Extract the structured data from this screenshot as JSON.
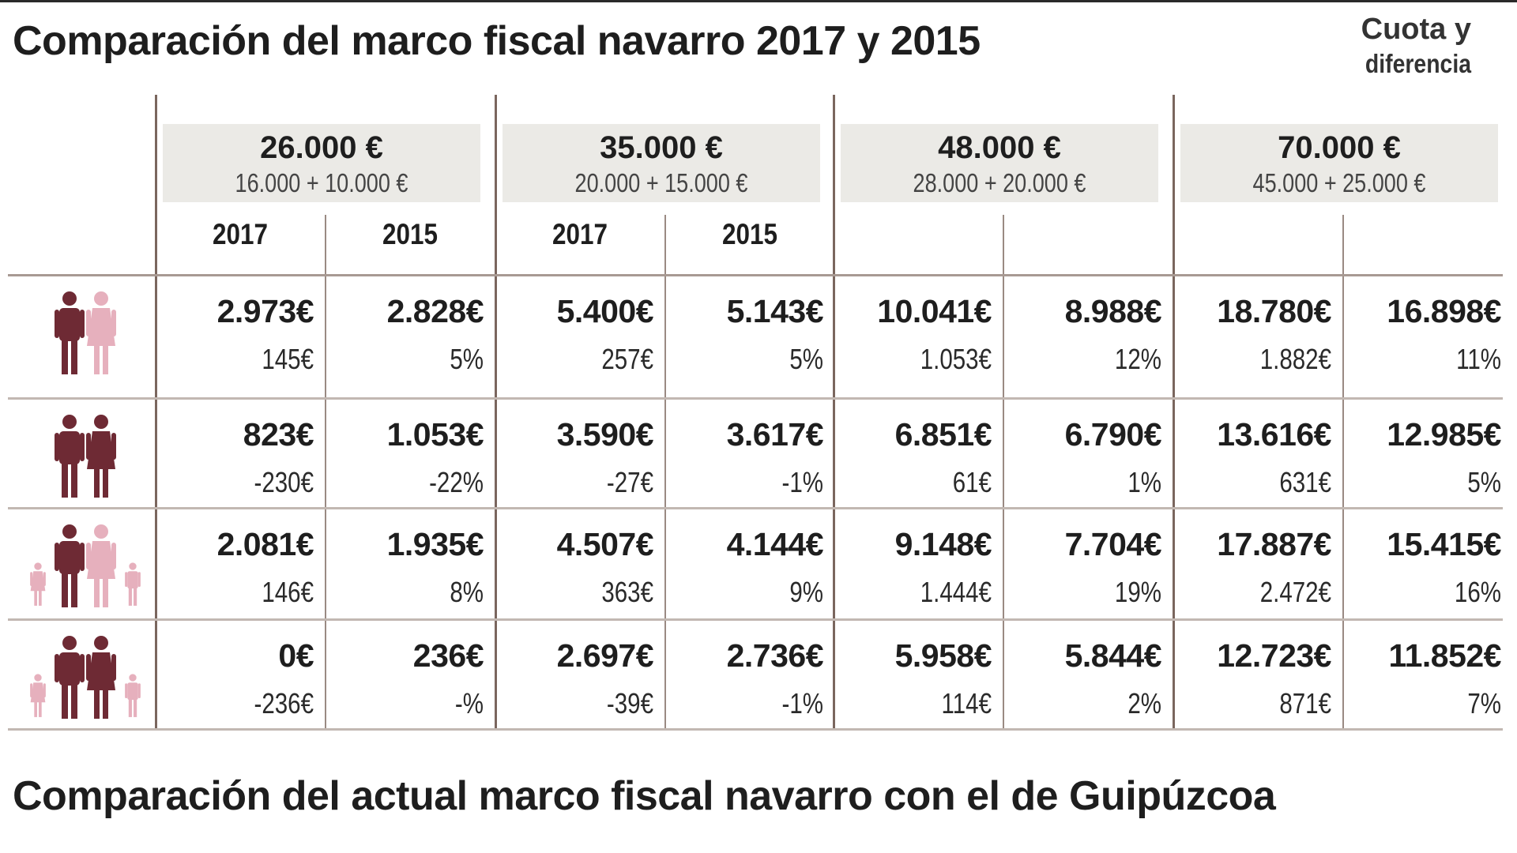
{
  "title": "Comparación del marco fiscal navarro 2017 y 2015",
  "legend": {
    "line1": "Cuota y",
    "line2": "diferencia"
  },
  "groups": [
    {
      "amount": "26.000 €",
      "breakdown": "16.000 + 10.000 €",
      "years": [
        "2017",
        "2015"
      ]
    },
    {
      "amount": "35.000 €",
      "breakdown": "20.000 + 15.000 €",
      "years": [
        "2017",
        "2015"
      ]
    },
    {
      "amount": "48.000 €",
      "breakdown": "28.000 + 20.000 €",
      "years": [
        "",
        ""
      ]
    },
    {
      "amount": "70.000 €",
      "breakdown": "45.000 + 25.000 €",
      "years": [
        "",
        ""
      ]
    }
  ],
  "rows": [
    {
      "icon": "couple-mixed-icon",
      "cells": [
        {
          "amount": "2.973€",
          "diff": "145€"
        },
        {
          "amount": "2.828€",
          "diff": "5%"
        },
        {
          "amount": "5.400€",
          "diff": "257€"
        },
        {
          "amount": "5.143€",
          "diff": "5%"
        },
        {
          "amount": "10.041€",
          "diff": "1.053€"
        },
        {
          "amount": "8.988€",
          "diff": "12%"
        },
        {
          "amount": "18.780€",
          "diff": "1.882€"
        },
        {
          "amount": "16.898€",
          "diff": "11%"
        }
      ]
    },
    {
      "icon": "couple-dark-icon",
      "cells": [
        {
          "amount": "823€",
          "diff": "-230€"
        },
        {
          "amount": "1.053€",
          "diff": "-22%"
        },
        {
          "amount": "3.590€",
          "diff": "-27€"
        },
        {
          "amount": "3.617€",
          "diff": "-1%"
        },
        {
          "amount": "6.851€",
          "diff": "61€"
        },
        {
          "amount": "6.790€",
          "diff": "1%"
        },
        {
          "amount": "13.616€",
          "diff": "631€"
        },
        {
          "amount": "12.985€",
          "diff": "5%"
        }
      ]
    },
    {
      "icon": "family-mixed-icon",
      "cells": [
        {
          "amount": "2.081€",
          "diff": "146€"
        },
        {
          "amount": "1.935€",
          "diff": "8%"
        },
        {
          "amount": "4.507€",
          "diff": "363€"
        },
        {
          "amount": "4.144€",
          "diff": "9%"
        },
        {
          "amount": "9.148€",
          "diff": "1.444€"
        },
        {
          "amount": "7.704€",
          "diff": "19%"
        },
        {
          "amount": "17.887€",
          "diff": "2.472€"
        },
        {
          "amount": "15.415€",
          "diff": "16%"
        }
      ]
    },
    {
      "icon": "family-dark-icon",
      "cells": [
        {
          "amount": "0€",
          "diff": "-236€"
        },
        {
          "amount": "236€",
          "diff": "-%"
        },
        {
          "amount": "2.697€",
          "diff": "-39€"
        },
        {
          "amount": "2.736€",
          "diff": "-1%"
        },
        {
          "amount": "5.958€",
          "diff": "114€"
        },
        {
          "amount": "5.844€",
          "diff": "2%"
        },
        {
          "amount": "12.723€",
          "diff": "871€"
        },
        {
          "amount": "11.852€",
          "diff": "7%"
        }
      ]
    }
  ],
  "subtitle": "Comparación del actual marco fiscal navarro con el de Guipúzcoa",
  "colors": {
    "dark_figure": "#6e2a34",
    "light_figure": "#e6b0bd",
    "header_bg": "#ebeae6",
    "divider": "#7a665e"
  }
}
